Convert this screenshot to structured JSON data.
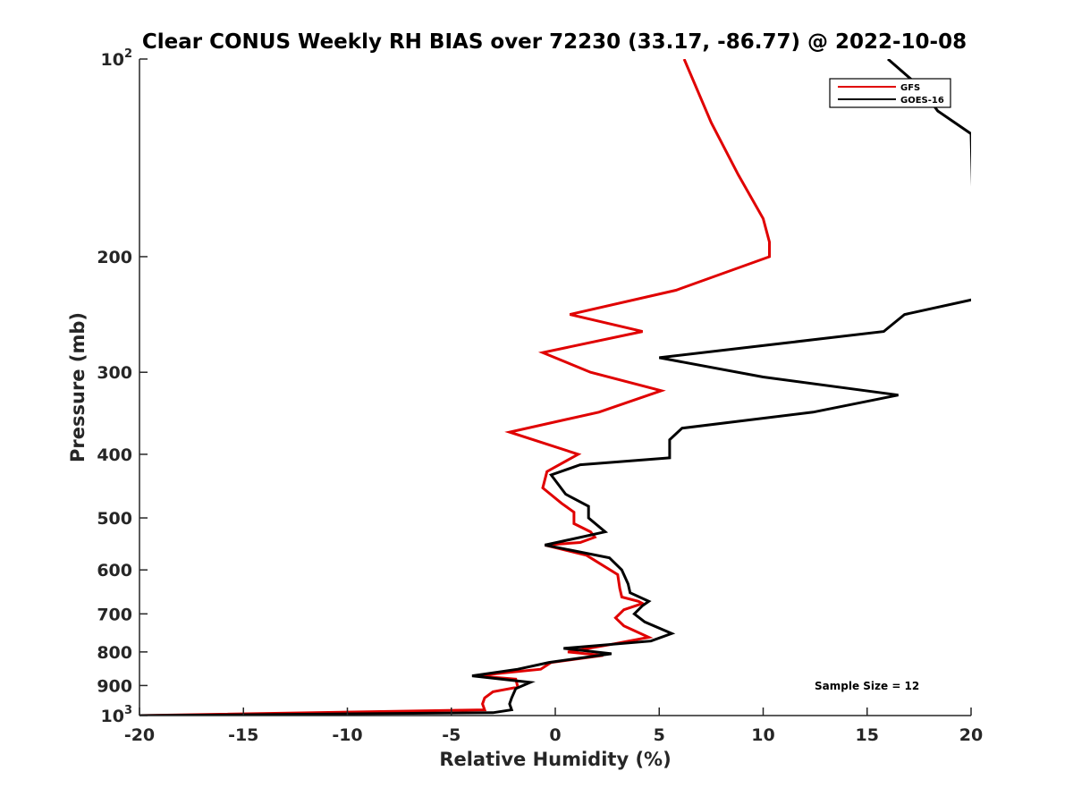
{
  "chart_data": {
    "type": "line",
    "title": "Clear CONUS Weekly RH BIAS over 72230 (33.17, -86.77) @ 2022-10-08",
    "xlabel": "Relative Humidity (%)",
    "ylabel": "Pressure (mb)",
    "xlim": [
      -20,
      20
    ],
    "ylim": [
      100,
      1000
    ],
    "y_scale": "log",
    "y_reversed": true,
    "x_ticks": [
      -20,
      -15,
      -10,
      -5,
      0,
      5,
      10,
      15,
      20
    ],
    "x_tick_labels": [
      "-20",
      "-15",
      "-10",
      "-5",
      "0",
      "5",
      "10",
      "15",
      "20"
    ],
    "y_ticks": [
      100,
      200,
      300,
      400,
      500,
      600,
      700,
      800,
      900,
      1000
    ],
    "y_tick_labels": [
      {
        "base": "10",
        "sup": "2"
      },
      {
        "base": "200",
        "sup": ""
      },
      {
        "base": "300",
        "sup": ""
      },
      {
        "base": "400",
        "sup": ""
      },
      {
        "base": "500",
        "sup": ""
      },
      {
        "base": "600",
        "sup": ""
      },
      {
        "base": "700",
        "sup": ""
      },
      {
        "base": "800",
        "sup": ""
      },
      {
        "base": "900",
        "sup": ""
      },
      {
        "base": "10",
        "sup": "3"
      }
    ],
    "legend_position": "top-right",
    "annotation": "Sample Size = 12",
    "series": [
      {
        "name": "GFS",
        "color": "#e00000",
        "points": [
          [
            6.2,
            100
          ],
          [
            7.5,
            125
          ],
          [
            8.8,
            150
          ],
          [
            10.0,
            175
          ],
          [
            10.3,
            190
          ],
          [
            10.3,
            200
          ],
          [
            5.8,
            225
          ],
          [
            0.7,
            245
          ],
          [
            4.2,
            260
          ],
          [
            -0.6,
            280
          ],
          [
            1.7,
            300
          ],
          [
            5.1,
            320
          ],
          [
            2.1,
            345
          ],
          [
            -2.2,
            370
          ],
          [
            1.1,
            400
          ],
          [
            -0.4,
            425
          ],
          [
            -0.6,
            450
          ],
          [
            0.3,
            475
          ],
          [
            0.9,
            490
          ],
          [
            0.9,
            510
          ],
          [
            1.7,
            525
          ],
          [
            1.9,
            535
          ],
          [
            1.2,
            545
          ],
          [
            -0.5,
            550
          ],
          [
            1.5,
            570
          ],
          [
            3.0,
            610
          ],
          [
            3.1,
            640
          ],
          [
            3.2,
            660
          ],
          [
            4.0,
            670
          ],
          [
            4.2,
            675
          ],
          [
            3.3,
            690
          ],
          [
            2.9,
            710
          ],
          [
            3.3,
            730
          ],
          [
            4.5,
            760
          ],
          [
            2.6,
            780
          ],
          [
            0.6,
            800
          ],
          [
            2.3,
            810
          ],
          [
            -0.2,
            830
          ],
          [
            -0.7,
            850
          ],
          [
            -2.3,
            860
          ],
          [
            -3.8,
            870
          ],
          [
            -1.9,
            880
          ],
          [
            -1.8,
            905
          ],
          [
            -3.0,
            920
          ],
          [
            -3.4,
            940
          ],
          [
            -3.5,
            960
          ],
          [
            -3.4,
            980
          ],
          [
            -20,
            1000
          ]
        ]
      },
      {
        "name": "GOES-16",
        "color": "#000000",
        "points": [
          [
            16.0,
            100
          ],
          [
            17.5,
            110
          ],
          [
            18.4,
            120
          ],
          [
            20.0,
            130
          ],
          [
            20.2,
            232
          ],
          [
            16.8,
            245
          ],
          [
            15.8,
            260
          ],
          [
            5.0,
            285
          ],
          [
            10.0,
            305
          ],
          [
            16.5,
            325
          ],
          [
            12.4,
            345
          ],
          [
            6.1,
            365
          ],
          [
            5.5,
            380
          ],
          [
            5.5,
            405
          ],
          [
            1.2,
            415
          ],
          [
            -0.2,
            430
          ],
          [
            0.5,
            460
          ],
          [
            1.6,
            480
          ],
          [
            1.6,
            500
          ],
          [
            2.4,
            525
          ],
          [
            -0.5,
            550
          ],
          [
            2.6,
            575
          ],
          [
            3.2,
            600
          ],
          [
            3.5,
            630
          ],
          [
            3.6,
            650
          ],
          [
            4.5,
            670
          ],
          [
            4.2,
            680
          ],
          [
            3.8,
            700
          ],
          [
            4.3,
            720
          ],
          [
            5.6,
            750
          ],
          [
            4.6,
            770
          ],
          [
            0.4,
            790
          ],
          [
            2.7,
            805
          ],
          [
            -0.3,
            830
          ],
          [
            -1.8,
            850
          ],
          [
            -4.0,
            870
          ],
          [
            -1.2,
            890
          ],
          [
            -1.9,
            910
          ],
          [
            -2.1,
            940
          ],
          [
            -2.2,
            960
          ],
          [
            -2.1,
            980
          ],
          [
            -3.0,
            990
          ],
          [
            -20,
            1000
          ]
        ]
      }
    ]
  }
}
